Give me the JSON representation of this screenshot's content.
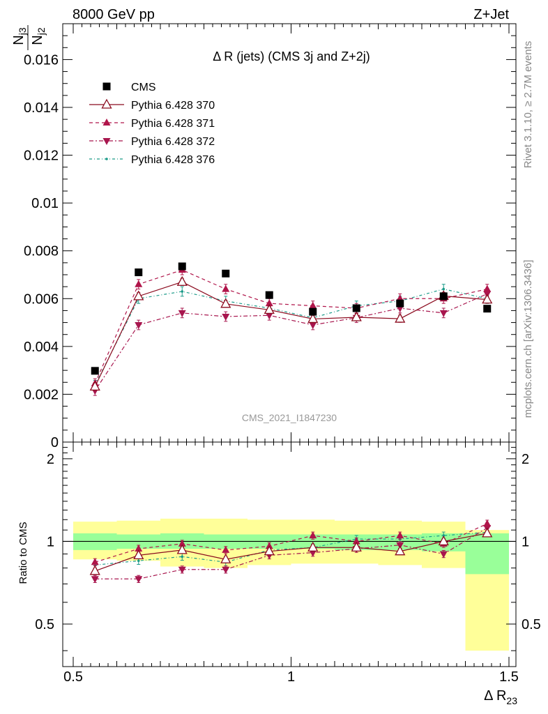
{
  "header": {
    "left": "8000 GeV pp",
    "right": "Z+Jet",
    "watermark": "CMS_2021_I1847230",
    "side_top": "Rivet 3.1.10, ≥ 2.7M events",
    "side_bottom": "mcplots.cern.ch [arXiv:1306.3436]"
  },
  "colors": {
    "cms": "#000000",
    "p370": "#8b0a1e",
    "p371": "#b0154a",
    "p372": "#a8164e",
    "p376": "#1a9a88",
    "band_inner": "#99ff99",
    "band_outer": "#ffff99"
  },
  "chart_data": [
    {
      "type": "scatter",
      "title": "Δ R (jets) (CMS 3j and Z+2j)",
      "ylabel_num": "N",
      "ylabel_num_sub": "j3",
      "ylabel_den": "N",
      "ylabel_den_sub": "j2",
      "ylim": [
        0,
        0.0175
      ],
      "yticks": [
        {
          "v": 0,
          "label": "0"
        },
        {
          "v": 0.002,
          "label": "0.002"
        },
        {
          "v": 0.004,
          "label": "0.004"
        },
        {
          "v": 0.006,
          "label": "0.006"
        },
        {
          "v": 0.008,
          "label": "0.008"
        },
        {
          "v": 0.01,
          "label": "0.01"
        },
        {
          "v": 0.012,
          "label": "0.012"
        },
        {
          "v": 0.014,
          "label": "0.014"
        },
        {
          "v": 0.016,
          "label": "0.016"
        }
      ],
      "x": [
        0.55,
        0.65,
        0.75,
        0.85,
        0.95,
        1.05,
        1.15,
        1.25,
        1.35,
        1.45
      ],
      "series": [
        {
          "name": "CMS",
          "key": "cms",
          "values": [
            0.00298,
            0.0071,
            0.00735,
            0.00705,
            0.00615,
            0.00545,
            0.0056,
            0.0058,
            0.0061,
            0.00558
          ]
        },
        {
          "name": "Pythia 6.428 370",
          "key": "p370",
          "values": [
            0.00232,
            0.0061,
            0.0067,
            0.00578,
            0.00553,
            0.00515,
            0.00522,
            0.00516,
            0.00611,
            0.00596
          ],
          "err": 0.00015
        },
        {
          "name": "Pythia 6.428 371",
          "key": "p371",
          "values": [
            0.00245,
            0.0066,
            0.0072,
            0.0064,
            0.0058,
            0.0057,
            0.0056,
            0.006,
            0.006,
            0.0064
          ],
          "err": 0.0002
        },
        {
          "name": "Pythia 6.428 372",
          "key": "p372",
          "values": [
            0.00215,
            0.0049,
            0.0054,
            0.00525,
            0.0053,
            0.0049,
            0.0052,
            0.0056,
            0.0054,
            0.0062
          ],
          "err": 0.0002
        },
        {
          "name": "Pythia 6.428 376",
          "key": "p376",
          "values": [
            0.00238,
            0.006,
            0.0063,
            0.0059,
            0.0056,
            0.0052,
            0.0057,
            0.0059,
            0.0064,
            0.006
          ],
          "err": 0.0002
        }
      ]
    },
    {
      "type": "scatter",
      "ylabel": "Ratio to CMS",
      "xlabel_main": "Δ R",
      "xlabel_sub": "23",
      "xlim": [
        0.5,
        1.5
      ],
      "ylim": [
        0.35,
        2.3
      ],
      "yticks": [
        {
          "v": 0.5,
          "label": "0.5"
        },
        {
          "v": 1,
          "label": "1"
        },
        {
          "v": 2,
          "label": "2"
        }
      ],
      "xticks": [
        {
          "v": 0.5,
          "label": "0.5"
        },
        {
          "v": 1,
          "label": "1"
        },
        {
          "v": 1.5,
          "label": "1.5"
        }
      ],
      "x": [
        0.55,
        0.65,
        0.75,
        0.85,
        0.95,
        1.05,
        1.15,
        1.25,
        1.35,
        1.45
      ],
      "bands": {
        "edges": [
          0.5,
          0.6,
          0.7,
          0.8,
          0.9,
          1.0,
          1.1,
          1.2,
          1.3,
          1.4,
          1.5
        ],
        "inner": [
          [
            0.93,
            1.07
          ],
          [
            0.94,
            1.06
          ],
          [
            0.94,
            1.07
          ],
          [
            0.94,
            1.06
          ],
          [
            0.94,
            1.06
          ],
          [
            0.94,
            1.06
          ],
          [
            0.93,
            1.06
          ],
          [
            0.93,
            1.06
          ],
          [
            0.92,
            1.07
          ],
          [
            0.76,
            1.07
          ]
        ],
        "outer": [
          [
            0.86,
            1.18
          ],
          [
            0.85,
            1.19
          ],
          [
            0.81,
            1.21
          ],
          [
            0.8,
            1.21
          ],
          [
            0.82,
            1.2
          ],
          [
            0.83,
            1.2
          ],
          [
            0.83,
            1.19
          ],
          [
            0.82,
            1.19
          ],
          [
            0.8,
            1.18
          ],
          [
            0.4,
            1.1
          ]
        ]
      },
      "series": [
        {
          "name": "Pythia 6.428 370",
          "key": "p370",
          "values": [
            0.78,
            0.89,
            0.93,
            0.86,
            0.92,
            0.95,
            0.95,
            0.92,
            1.0,
            1.07
          ],
          "err": 0.025
        },
        {
          "name": "Pythia 6.428 371",
          "key": "p371",
          "values": [
            0.84,
            0.94,
            0.98,
            0.93,
            0.96,
            1.05,
            1.0,
            1.05,
            0.98,
            1.16
          ],
          "err": 0.03
        },
        {
          "name": "Pythia 6.428 372",
          "key": "p372",
          "values": [
            0.73,
            0.73,
            0.79,
            0.79,
            0.89,
            0.91,
            0.94,
            0.97,
            0.9,
            1.12
          ],
          "err": 0.03
        },
        {
          "name": "Pythia 6.428 376",
          "key": "p376",
          "values": [
            0.82,
            0.85,
            0.88,
            0.84,
            0.93,
            0.95,
            1.02,
            1.02,
            1.05,
            1.08
          ],
          "err": 0.03
        }
      ]
    }
  ]
}
